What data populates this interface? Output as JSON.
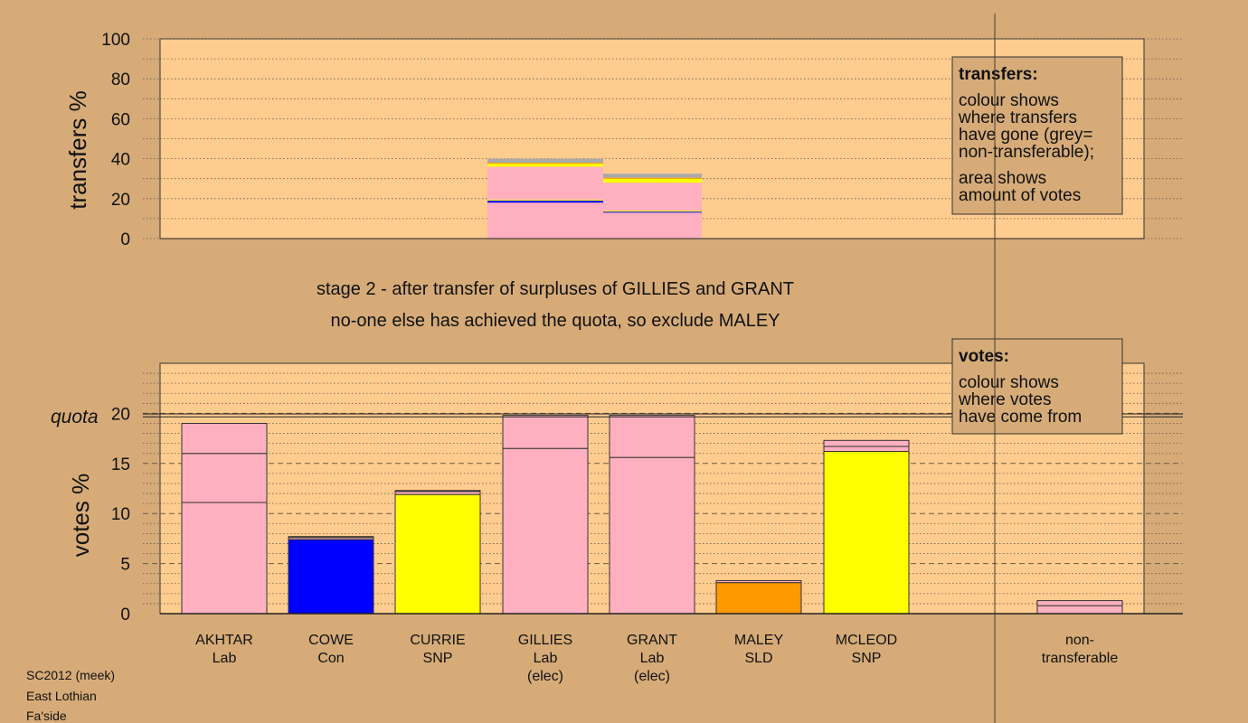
{
  "chart_data": [
    {
      "type": "bar",
      "ylabel": "transfers %",
      "ylim": [
        0,
        100
      ],
      "yticks": [
        0,
        20,
        40,
        60,
        80,
        100
      ],
      "grid": "dotted",
      "segments_order": "bottom-to-top",
      "bars": [
        {
          "name": "GILLIES",
          "segments": [
            {
              "color": "#FFB0C0",
              "value": 18
            },
            {
              "color": "#0000FF",
              "value": 1
            },
            {
              "color": "#FFFF00",
              "value": 0.5
            },
            {
              "color": "#FFB0C0",
              "value": 16.5
            },
            {
              "color": "#FFFF00",
              "value": 1.5
            },
            {
              "color": "#FF9900",
              "value": 0.5
            },
            {
              "color": "#AAAAAA",
              "value": 2
            }
          ]
        },
        {
          "name": "GRANT",
          "segments": [
            {
              "color": "#FFB0C0",
              "value": 13
            },
            {
              "color": "#0000FF",
              "value": 0.5
            },
            {
              "color": "#FFFF00",
              "value": 0.5
            },
            {
              "color": "#FFB0C0",
              "value": 14
            },
            {
              "color": "#FFFF00",
              "value": 2
            },
            {
              "color": "#FF9900",
              "value": 0.5
            },
            {
              "color": "#AAAAAA",
              "value": 2
            }
          ]
        }
      ],
      "legend": {
        "position": "top-right",
        "title": "transfers:",
        "lines_a": [
          "colour shows",
          "where transfers",
          "have gone (grey=",
          "non-transferable);"
        ],
        "lines_b": [
          "area shows",
          "amount of votes"
        ]
      }
    },
    {
      "type": "bar",
      "ylabel": "votes %",
      "ylim": [
        0,
        25
      ],
      "yticks": [
        0,
        5,
        10,
        15,
        20
      ],
      "quota": 19.8,
      "quota_label": "quota",
      "grid": "dashed",
      "categories": [
        "AKHTAR",
        "COWE",
        "CURRIE",
        "GILLIES",
        "GRANT",
        "MALEY",
        "MCLEOD",
        "non-transferable"
      ],
      "bars": [
        {
          "name": "AKHTAR",
          "party": "Lab",
          "status": "",
          "segments": [
            {
              "color": "#FFB0C0",
              "value": 11.1
            },
            {
              "color": "#FFB0C0",
              "value": 4.9
            },
            {
              "color": "#FFB0C0",
              "value": 3.0
            }
          ]
        },
        {
          "name": "COWE",
          "party": "Con",
          "status": "",
          "segments": [
            {
              "color": "#0000FF",
              "value": 7.4
            },
            {
              "color": "#FFB0C0",
              "value": 0.2
            },
            {
              "color": "#FFFF00",
              "value": 0.1
            }
          ]
        },
        {
          "name": "CURRIE",
          "party": "SNP",
          "status": "",
          "segments": [
            {
              "color": "#FFFF00",
              "value": 11.9
            },
            {
              "color": "#FFB0C0",
              "value": 0.3
            },
            {
              "color": "#FFB0C0",
              "value": 0.1
            }
          ]
        },
        {
          "name": "GILLIES",
          "party": "Lab",
          "status": "(elec)",
          "segments": [
            {
              "color": "#FFB0C0",
              "value": 16.5
            },
            {
              "color": "#FFB0C0",
              "value": 3.3
            }
          ]
        },
        {
          "name": "GRANT",
          "party": "Lab",
          "status": "(elec)",
          "segments": [
            {
              "color": "#FFB0C0",
              "value": 15.6
            },
            {
              "color": "#FFB0C0",
              "value": 4.2
            }
          ]
        },
        {
          "name": "MALEY",
          "party": "SLD",
          "status": "",
          "segments": [
            {
              "color": "#FF9900",
              "value": 3.1
            },
            {
              "color": "#FFB0C0",
              "value": 0.2
            }
          ]
        },
        {
          "name": "MCLEOD",
          "party": "SNP",
          "status": "",
          "segments": [
            {
              "color": "#FFFF00",
              "value": 16.2
            },
            {
              "color": "#FFB0C0",
              "value": 0.5
            },
            {
              "color": "#FFB0C0",
              "value": 0.6
            }
          ]
        },
        {
          "name": "non-",
          "party": "transferable",
          "status": "",
          "segments": [
            {
              "color": "#FFB0C0",
              "value": 0.8
            },
            {
              "color": "#FFB0C0",
              "value": 0.5
            }
          ]
        }
      ],
      "legend": {
        "position": "top-right",
        "title": "votes:",
        "lines_a": [
          "colour shows",
          "where votes",
          "have come from"
        ]
      }
    }
  ],
  "stage_text": {
    "line1": "stage 2 - after transfer of surpluses of GILLIES and GRANT",
    "line2": "no-one else has achieved the quota, so exclude MALEY"
  },
  "footer": {
    "line1": "SC2012 (meek)",
    "line2": "East Lothian",
    "line3": "Fa'side"
  }
}
